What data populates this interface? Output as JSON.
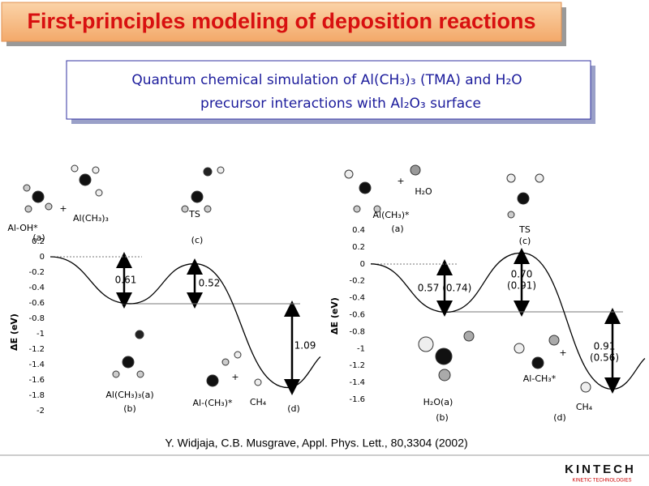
{
  "slide": {
    "title": "First-principles modeling of deposition reactions",
    "subtitle": [
      "Quantum chemical simulation of Al(CH₃)₃ (TMA) and H₂O",
      "precursor interactions with Al₂O₃ surface"
    ],
    "citation": "Y. Widjaja, C.B. Musgrave, Appl. Phys. Lett., 80,3304 (2002)",
    "logo": "KINTECH",
    "logo_sub": "KINETIC TECHNOLOGIES"
  },
  "chart_data": [
    {
      "type": "line",
      "ylabel": "ΔE (eV)",
      "categories": [
        "(a)",
        "(b)",
        "(c)",
        "(d)"
      ],
      "values": [
        0,
        -0.61,
        -0.09,
        -1.7
      ],
      "color": "#000000",
      "ylim": [
        -2,
        0.2
      ],
      "yticks": [
        -2,
        -1.8,
        -1.6,
        -1.4,
        -1.2,
        -1,
        -0.8,
        -0.6,
        -0.4,
        -0.2,
        0,
        0.2
      ],
      "species": [
        "Al-OH*",
        "+",
        "Al(CH₃)₃",
        "TS",
        "Al(CH₃)₃(a)",
        "Al-(CH₃)*",
        "+",
        "CH₄"
      ],
      "annotations": [
        "0.61",
        "0.52",
        "1.09"
      ]
    },
    {
      "type": "line",
      "ylabel": "ΔE (eV)",
      "categories": [
        "(a)",
        "(b)",
        "(c)",
        "(d)"
      ],
      "values": [
        0,
        -0.57,
        0.13,
        -1.48
      ],
      "color": "#000000",
      "ylim": [
        -1.6,
        0.4
      ],
      "yticks": [
        -1.6,
        -1.4,
        -1.2,
        -1,
        -0.8,
        -0.6,
        -0.4,
        -0.2,
        0,
        0.2,
        0.4
      ],
      "species": [
        "Al(CH₃)*",
        "+",
        "H₂O",
        "TS",
        "H₂O(a)",
        "Al-CH₃*",
        "+",
        "CH₄"
      ],
      "annotations": [
        "0.57 (0.74)",
        "0.70",
        "(0.91)",
        "0.91",
        "(0.56)"
      ]
    }
  ]
}
